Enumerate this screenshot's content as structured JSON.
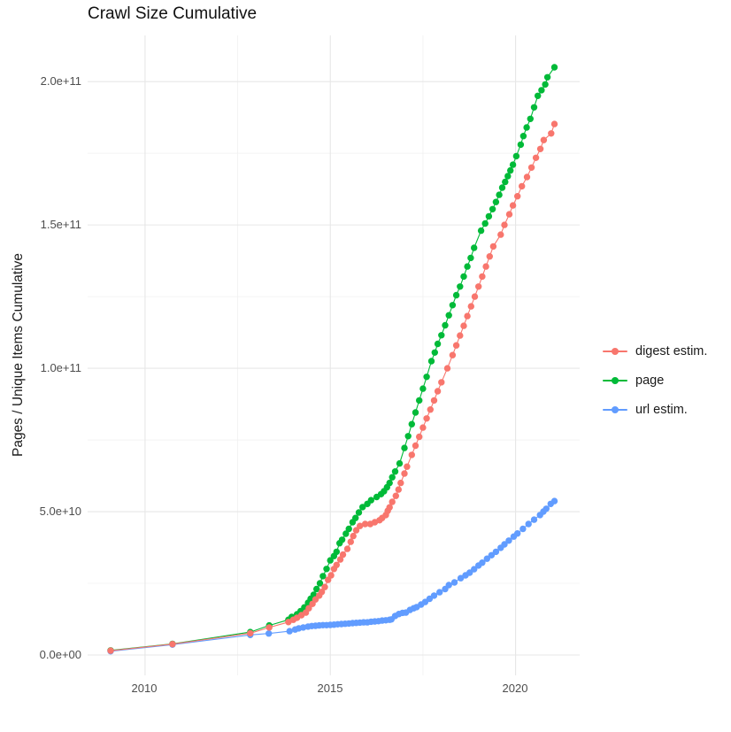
{
  "chart_data": {
    "type": "scatter",
    "title": "Crawl Size Cumulative",
    "xlabel": "",
    "ylabel": "Pages / Unique Items Cumulative",
    "legend_position": "right",
    "grid": true,
    "x_domain": [
      2008.45,
      2021.73
    ],
    "y_domain_e9": [
      -7.1,
      216.1
    ],
    "x_ticks": [
      2010,
      2015,
      2020
    ],
    "x_tick_labels": [
      "2010",
      "2015",
      "2020"
    ],
    "x_minor_ticks": [
      2012.5,
      2017.5
    ],
    "y_ticks_e9": [
      0,
      50,
      100,
      150,
      200
    ],
    "y_tick_labels": [
      "0.0e+00",
      "5.0e+10",
      "1.0e+11",
      "1.5e+11",
      "2.0e+11"
    ],
    "y_minor_ticks_e9": [
      25,
      75,
      125,
      175
    ],
    "value_unit": "billions (1e9) of pages / unique items, cumulative",
    "series": [
      {
        "name": "digest estim.",
        "color": "#F8766D",
        "points": [
          [
            2009.07,
            1.5
          ],
          [
            2010.74,
            3.8
          ],
          [
            2012.84,
            7.6
          ],
          [
            2013.35,
            9.6
          ],
          [
            2013.87,
            11.5
          ],
          [
            2014.0,
            12.3
          ],
          [
            2014.1,
            13.0
          ],
          [
            2014.22,
            13.9
          ],
          [
            2014.34,
            14.8
          ],
          [
            2014.42,
            16.3
          ],
          [
            2014.52,
            17.8
          ],
          [
            2014.6,
            19.4
          ],
          [
            2014.7,
            20.7
          ],
          [
            2014.77,
            22.0
          ],
          [
            2014.85,
            23.7
          ],
          [
            2014.94,
            26.2
          ],
          [
            2015.02,
            27.8
          ],
          [
            2015.1,
            30.0
          ],
          [
            2015.17,
            31.4
          ],
          [
            2015.27,
            33.3
          ],
          [
            2015.34,
            35.0
          ],
          [
            2015.46,
            37.0
          ],
          [
            2015.55,
            39.5
          ],
          [
            2015.62,
            41.5
          ],
          [
            2015.7,
            43.5
          ],
          [
            2015.8,
            45.0
          ],
          [
            2015.94,
            45.7
          ],
          [
            2016.08,
            45.7
          ],
          [
            2016.2,
            46.3
          ],
          [
            2016.33,
            47.0
          ],
          [
            2016.4,
            47.8
          ],
          [
            2016.5,
            48.8
          ],
          [
            2016.55,
            50.3
          ],
          [
            2016.6,
            51.5
          ],
          [
            2016.67,
            53.4
          ],
          [
            2016.77,
            55.5
          ],
          [
            2016.84,
            57.7
          ],
          [
            2016.9,
            60.0
          ],
          [
            2017.0,
            63.3
          ],
          [
            2017.07,
            65.7
          ],
          [
            2017.2,
            69.8
          ],
          [
            2017.3,
            73.0
          ],
          [
            2017.4,
            76.1
          ],
          [
            2017.5,
            79.3
          ],
          [
            2017.6,
            82.5
          ],
          [
            2017.7,
            85.6
          ],
          [
            2017.8,
            88.8
          ],
          [
            2017.9,
            92.0
          ],
          [
            2018.0,
            95.1
          ],
          [
            2018.16,
            100.0
          ],
          [
            2018.3,
            104.6
          ],
          [
            2018.4,
            108.0
          ],
          [
            2018.5,
            111.4
          ],
          [
            2018.6,
            114.8
          ],
          [
            2018.7,
            118.2
          ],
          [
            2018.8,
            121.6
          ],
          [
            2018.9,
            125.0
          ],
          [
            2019.0,
            128.5
          ],
          [
            2019.1,
            132.0
          ],
          [
            2019.2,
            135.5
          ],
          [
            2019.3,
            139.0
          ],
          [
            2019.4,
            142.5
          ],
          [
            2019.6,
            146.6
          ],
          [
            2019.7,
            150.0
          ],
          [
            2019.83,
            153.7
          ],
          [
            2019.93,
            156.8
          ],
          [
            2020.05,
            160.0
          ],
          [
            2020.17,
            163.5
          ],
          [
            2020.31,
            166.7
          ],
          [
            2020.43,
            170.0
          ],
          [
            2020.55,
            173.4
          ],
          [
            2020.67,
            176.5
          ],
          [
            2020.76,
            179.6
          ],
          [
            2020.96,
            181.9
          ],
          [
            2021.05,
            185.2
          ]
        ]
      },
      {
        "name": "page",
        "color": "#00BA38",
        "points": [
          [
            2009.07,
            1.6
          ],
          [
            2010.74,
            3.9
          ],
          [
            2012.84,
            8.0
          ],
          [
            2013.35,
            10.3
          ],
          [
            2013.87,
            12.3
          ],
          [
            2013.96,
            13.3
          ],
          [
            2014.1,
            14.2
          ],
          [
            2014.2,
            15.3
          ],
          [
            2014.3,
            16.6
          ],
          [
            2014.4,
            18.2
          ],
          [
            2014.47,
            19.6
          ],
          [
            2014.55,
            21.0
          ],
          [
            2014.63,
            23.0
          ],
          [
            2014.72,
            25.0
          ],
          [
            2014.8,
            27.5
          ],
          [
            2014.9,
            30.0
          ],
          [
            2015.0,
            33.0
          ],
          [
            2015.1,
            34.5
          ],
          [
            2015.17,
            36.0
          ],
          [
            2015.25,
            39.0
          ],
          [
            2015.32,
            40.2
          ],
          [
            2015.42,
            42.3
          ],
          [
            2015.5,
            44.0
          ],
          [
            2015.6,
            46.3
          ],
          [
            2015.68,
            47.8
          ],
          [
            2015.77,
            49.7
          ],
          [
            2015.87,
            51.6
          ],
          [
            2016.0,
            52.7
          ],
          [
            2016.1,
            54.0
          ],
          [
            2016.25,
            55.1
          ],
          [
            2016.37,
            56.1
          ],
          [
            2016.45,
            57.1
          ],
          [
            2016.53,
            58.5
          ],
          [
            2016.6,
            60.0
          ],
          [
            2016.67,
            62.0
          ],
          [
            2016.75,
            64.0
          ],
          [
            2016.87,
            66.8
          ],
          [
            2017.0,
            72.2
          ],
          [
            2017.1,
            76.3
          ],
          [
            2017.2,
            80.5
          ],
          [
            2017.3,
            84.6
          ],
          [
            2017.4,
            88.8
          ],
          [
            2017.5,
            92.9
          ],
          [
            2017.6,
            97.0
          ],
          [
            2017.73,
            102.5
          ],
          [
            2017.82,
            105.5
          ],
          [
            2017.9,
            108.5
          ],
          [
            2018.0,
            111.5
          ],
          [
            2018.1,
            115.0
          ],
          [
            2018.2,
            118.5
          ],
          [
            2018.3,
            122.0
          ],
          [
            2018.4,
            125.5
          ],
          [
            2018.5,
            128.5
          ],
          [
            2018.6,
            132.0
          ],
          [
            2018.7,
            135.5
          ],
          [
            2018.79,
            138.5
          ],
          [
            2018.88,
            142.0
          ],
          [
            2019.07,
            148.0
          ],
          [
            2019.18,
            150.5
          ],
          [
            2019.28,
            153.0
          ],
          [
            2019.38,
            155.5
          ],
          [
            2019.47,
            158.0
          ],
          [
            2019.56,
            160.5
          ],
          [
            2019.64,
            163.0
          ],
          [
            2019.72,
            165.0
          ],
          [
            2019.79,
            167.0
          ],
          [
            2019.86,
            169.0
          ],
          [
            2019.93,
            171.0
          ],
          [
            2020.02,
            174.0
          ],
          [
            2020.14,
            178.0
          ],
          [
            2020.21,
            181.0
          ],
          [
            2020.3,
            184.0
          ],
          [
            2020.4,
            187.0
          ],
          [
            2020.5,
            191.0
          ],
          [
            2020.6,
            195.0
          ],
          [
            2020.7,
            197.0
          ],
          [
            2020.8,
            199.0
          ],
          [
            2020.86,
            201.5
          ],
          [
            2021.05,
            205.0
          ]
        ]
      },
      {
        "name": "url estim.",
        "color": "#619CFF",
        "points": [
          [
            2009.07,
            1.3
          ],
          [
            2010.74,
            3.6
          ],
          [
            2012.84,
            7.0
          ],
          [
            2013.34,
            7.5
          ],
          [
            2013.9,
            8.3
          ],
          [
            2014.05,
            8.9
          ],
          [
            2014.15,
            9.3
          ],
          [
            2014.27,
            9.6
          ],
          [
            2014.4,
            9.9
          ],
          [
            2014.5,
            10.1
          ],
          [
            2014.6,
            10.2
          ],
          [
            2014.7,
            10.3
          ],
          [
            2014.8,
            10.4
          ],
          [
            2014.9,
            10.4
          ],
          [
            2015.0,
            10.5
          ],
          [
            2015.1,
            10.6
          ],
          [
            2015.2,
            10.7
          ],
          [
            2015.3,
            10.8
          ],
          [
            2015.4,
            10.9
          ],
          [
            2015.5,
            11.0
          ],
          [
            2015.6,
            11.1
          ],
          [
            2015.7,
            11.2
          ],
          [
            2015.8,
            11.3
          ],
          [
            2015.9,
            11.4
          ],
          [
            2016.0,
            11.4
          ],
          [
            2016.1,
            11.6
          ],
          [
            2016.2,
            11.7
          ],
          [
            2016.3,
            11.8
          ],
          [
            2016.4,
            12.0
          ],
          [
            2016.5,
            12.1
          ],
          [
            2016.6,
            12.3
          ],
          [
            2016.65,
            12.4
          ],
          [
            2016.75,
            13.6
          ],
          [
            2016.85,
            14.3
          ],
          [
            2016.95,
            14.7
          ],
          [
            2017.04,
            14.8
          ],
          [
            2017.15,
            15.7
          ],
          [
            2017.25,
            16.3
          ],
          [
            2017.33,
            16.7
          ],
          [
            2017.45,
            17.6
          ],
          [
            2017.56,
            18.5
          ],
          [
            2017.68,
            19.6
          ],
          [
            2017.8,
            20.7
          ],
          [
            2017.95,
            21.9
          ],
          [
            2018.1,
            23.0
          ],
          [
            2018.2,
            24.4
          ],
          [
            2018.35,
            25.3
          ],
          [
            2018.52,
            26.8
          ],
          [
            2018.65,
            27.8
          ],
          [
            2018.76,
            28.7
          ],
          [
            2018.88,
            29.9
          ],
          [
            2019.0,
            31.2
          ],
          [
            2019.1,
            32.2
          ],
          [
            2019.23,
            33.6
          ],
          [
            2019.35,
            34.8
          ],
          [
            2019.47,
            36.0
          ],
          [
            2019.6,
            37.4
          ],
          [
            2019.7,
            38.6
          ],
          [
            2019.82,
            39.9
          ],
          [
            2019.95,
            41.3
          ],
          [
            2020.05,
            42.4
          ],
          [
            2020.2,
            44.0
          ],
          [
            2020.35,
            45.7
          ],
          [
            2020.5,
            47.2
          ],
          [
            2020.66,
            48.8
          ],
          [
            2020.75,
            50.0
          ],
          [
            2020.83,
            51.0
          ],
          [
            2020.95,
            52.7
          ],
          [
            2021.05,
            53.7
          ]
        ]
      }
    ]
  }
}
